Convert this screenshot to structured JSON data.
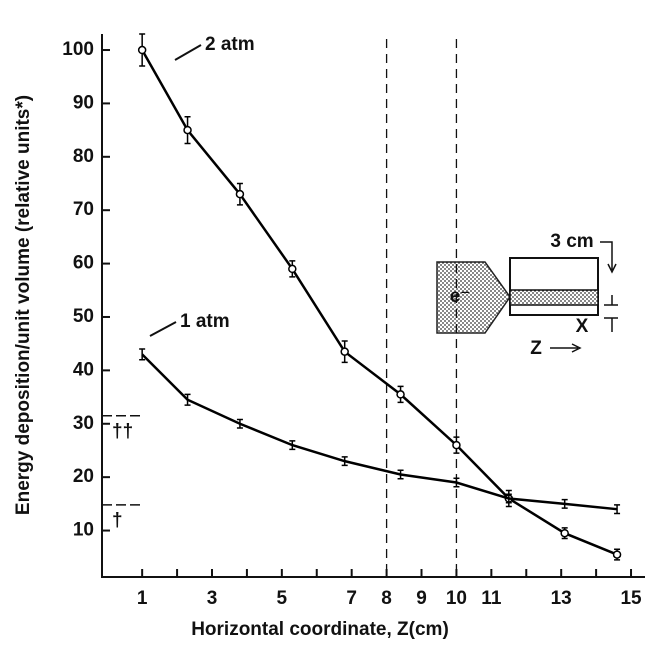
{
  "chart_data": {
    "type": "line",
    "xlabel": "Horizontal coordinate, Z(cm)",
    "ylabel": "Energy deposition/unit volume (relative units*)",
    "xlim": [
      -0.15,
      15.4
    ],
    "ylim": [
      1.3,
      103
    ],
    "xticks": [
      1,
      3,
      5,
      7,
      8,
      9,
      10,
      11,
      13,
      15
    ],
    "xminor_ticks": [
      2,
      4,
      6,
      12,
      14
    ],
    "yticks": [
      10,
      20,
      30,
      40,
      50,
      60,
      70,
      80,
      90,
      100
    ],
    "vlines": [
      8,
      10
    ],
    "annotations": [
      {
        "text": "††",
        "y": 31.5
      },
      {
        "text": "†",
        "y": 14.8
      }
    ],
    "series": [
      {
        "name": "2 atm",
        "color": "#000000",
        "marker": "circle",
        "x": [
          1,
          2.3,
          3.8,
          5.3,
          6.8,
          8.4,
          10,
          11.5,
          13.1,
          14.6
        ],
        "values": [
          100,
          85,
          73,
          59,
          43.5,
          35.5,
          26,
          16,
          9.5,
          5.5
        ],
        "errors": [
          3,
          2.5,
          2,
          1.5,
          2,
          1.5,
          1.5,
          1.5,
          1,
          1
        ]
      },
      {
        "name": "1 atm",
        "color": "#000000",
        "marker": "bar",
        "x": [
          1,
          2.3,
          3.8,
          5.3,
          6.8,
          8.4,
          10,
          11.5,
          13.1,
          14.6
        ],
        "values": [
          43,
          34.5,
          30,
          26,
          23,
          20.5,
          19,
          16,
          15,
          14
        ],
        "errors": [
          1,
          1,
          0.8,
          0.8,
          0.8,
          0.8,
          0.8,
          0.8,
          0.8,
          0.8
        ]
      }
    ],
    "inset": {
      "labels": [
        "3 cm",
        "e⁻",
        "X",
        "Z"
      ]
    }
  }
}
